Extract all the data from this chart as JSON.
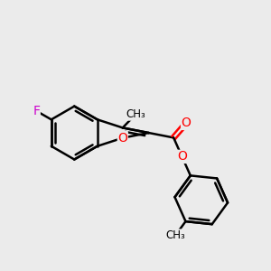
{
  "background_color": "#ebebeb",
  "bond_color": "#000000",
  "atom_colors": {
    "F": "#cc00cc",
    "O": "#ff0000",
    "C": "#000000"
  },
  "font_size": 10,
  "line_width": 1.8,
  "figsize": [
    3.0,
    3.0
  ],
  "dpi": 100,
  "xlim": [
    0,
    10
  ],
  "ylim": [
    0,
    10
  ]
}
